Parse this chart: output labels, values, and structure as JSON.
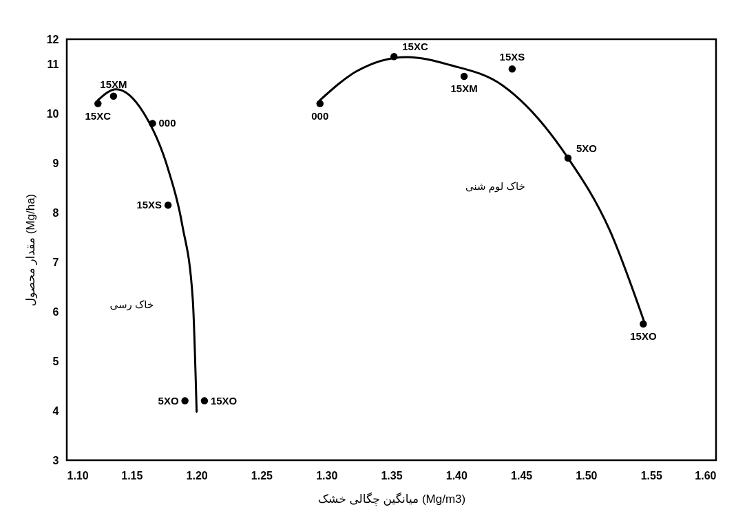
{
  "chart_data": {
    "type": "scatter",
    "xlabel": "میانگین چگالی خشک (Mg/m3)",
    "ylabel": "مقدار محصول (Mg/ha)",
    "xlim": [
      1.1,
      1.6
    ],
    "xticks": [
      {
        "value": 1.1,
        "label": "1.10"
      },
      {
        "value": 1.15,
        "label": "1.15"
      },
      {
        "value": 1.2,
        "label": "1.20"
      },
      {
        "value": 1.25,
        "label": "1.25"
      },
      {
        "value": 1.3,
        "label": "1.30"
      },
      {
        "value": 1.35,
        "label": "1.35"
      },
      {
        "value": 1.4,
        "label": "1.40"
      },
      {
        "value": 1.45,
        "label": "1.45"
      },
      {
        "value": 1.5,
        "label": "1.50"
      },
      {
        "value": 1.55,
        "label": "1.55"
      },
      {
        "value": 1.6,
        "label": "1.60"
      }
    ],
    "ylim": [
      3,
      11.5
    ],
    "yticks": [
      3,
      4,
      5,
      6,
      7,
      8,
      9,
      10,
      11,
      {
        "value": 11.5,
        "label": "12"
      }
    ],
    "grid": false,
    "marker": "circle",
    "series": [
      {
        "color": "#000000",
        "x": [
          1.124,
          1.136,
          1.166,
          1.178,
          1.191,
          1.206
        ],
        "values": [
          10.2,
          10.35,
          9.8,
          8.15,
          4.2,
          4.2
        ]
      },
      {
        "color": "#000000",
        "x": [
          1.295,
          1.352,
          1.406,
          1.443,
          1.486,
          1.544
        ],
        "values": [
          10.2,
          11.15,
          10.75,
          10.9,
          9.1,
          5.75
        ]
      },
      {
        "type": "line",
        "marker": "none",
        "color": "#000000",
        "x": [
          1.124,
          1.138,
          1.159,
          1.178,
          1.189,
          1.197,
          1.2
        ],
        "values": [
          10.27,
          10.49,
          10.02,
          8.88,
          7.74,
          6.26,
          3.98
        ]
      },
      {
        "type": "line",
        "marker": "none",
        "color": "#000000",
        "x": [
          1.295,
          1.323,
          1.362,
          1.395,
          1.436,
          1.485,
          1.518,
          1.545
        ],
        "values": [
          10.27,
          10.85,
          11.14,
          10.98,
          10.56,
          9.14,
          7.65,
          5.77
        ]
      }
    ],
    "annotations": [
      {
        "text": "15XC",
        "x": 1.124,
        "y": 10.2
      },
      {
        "text": "15XM",
        "x": 1.136,
        "y": 10.35
      },
      {
        "text": "000",
        "x": 1.166,
        "y": 9.8
      },
      {
        "text": "15XS",
        "x": 1.178,
        "y": 8.15
      },
      {
        "text": "5XO",
        "x": 1.191,
        "y": 4.2
      },
      {
        "text": "15XO",
        "x": 1.206,
        "y": 4.2
      },
      {
        "text": "000",
        "x": 1.295,
        "y": 10.2
      },
      {
        "text": "15XC",
        "x": 1.352,
        "y": 11.15
      },
      {
        "text": "15XM",
        "x": 1.406,
        "y": 10.75
      },
      {
        "text": "15XS",
        "x": 1.443,
        "y": 10.9
      },
      {
        "text": "5XO",
        "x": 1.486,
        "y": 9.1
      },
      {
        "text": "15XO",
        "x": 1.544,
        "y": 5.75
      },
      "خاک رسی",
      "خاک لوم شنی"
    ]
  }
}
